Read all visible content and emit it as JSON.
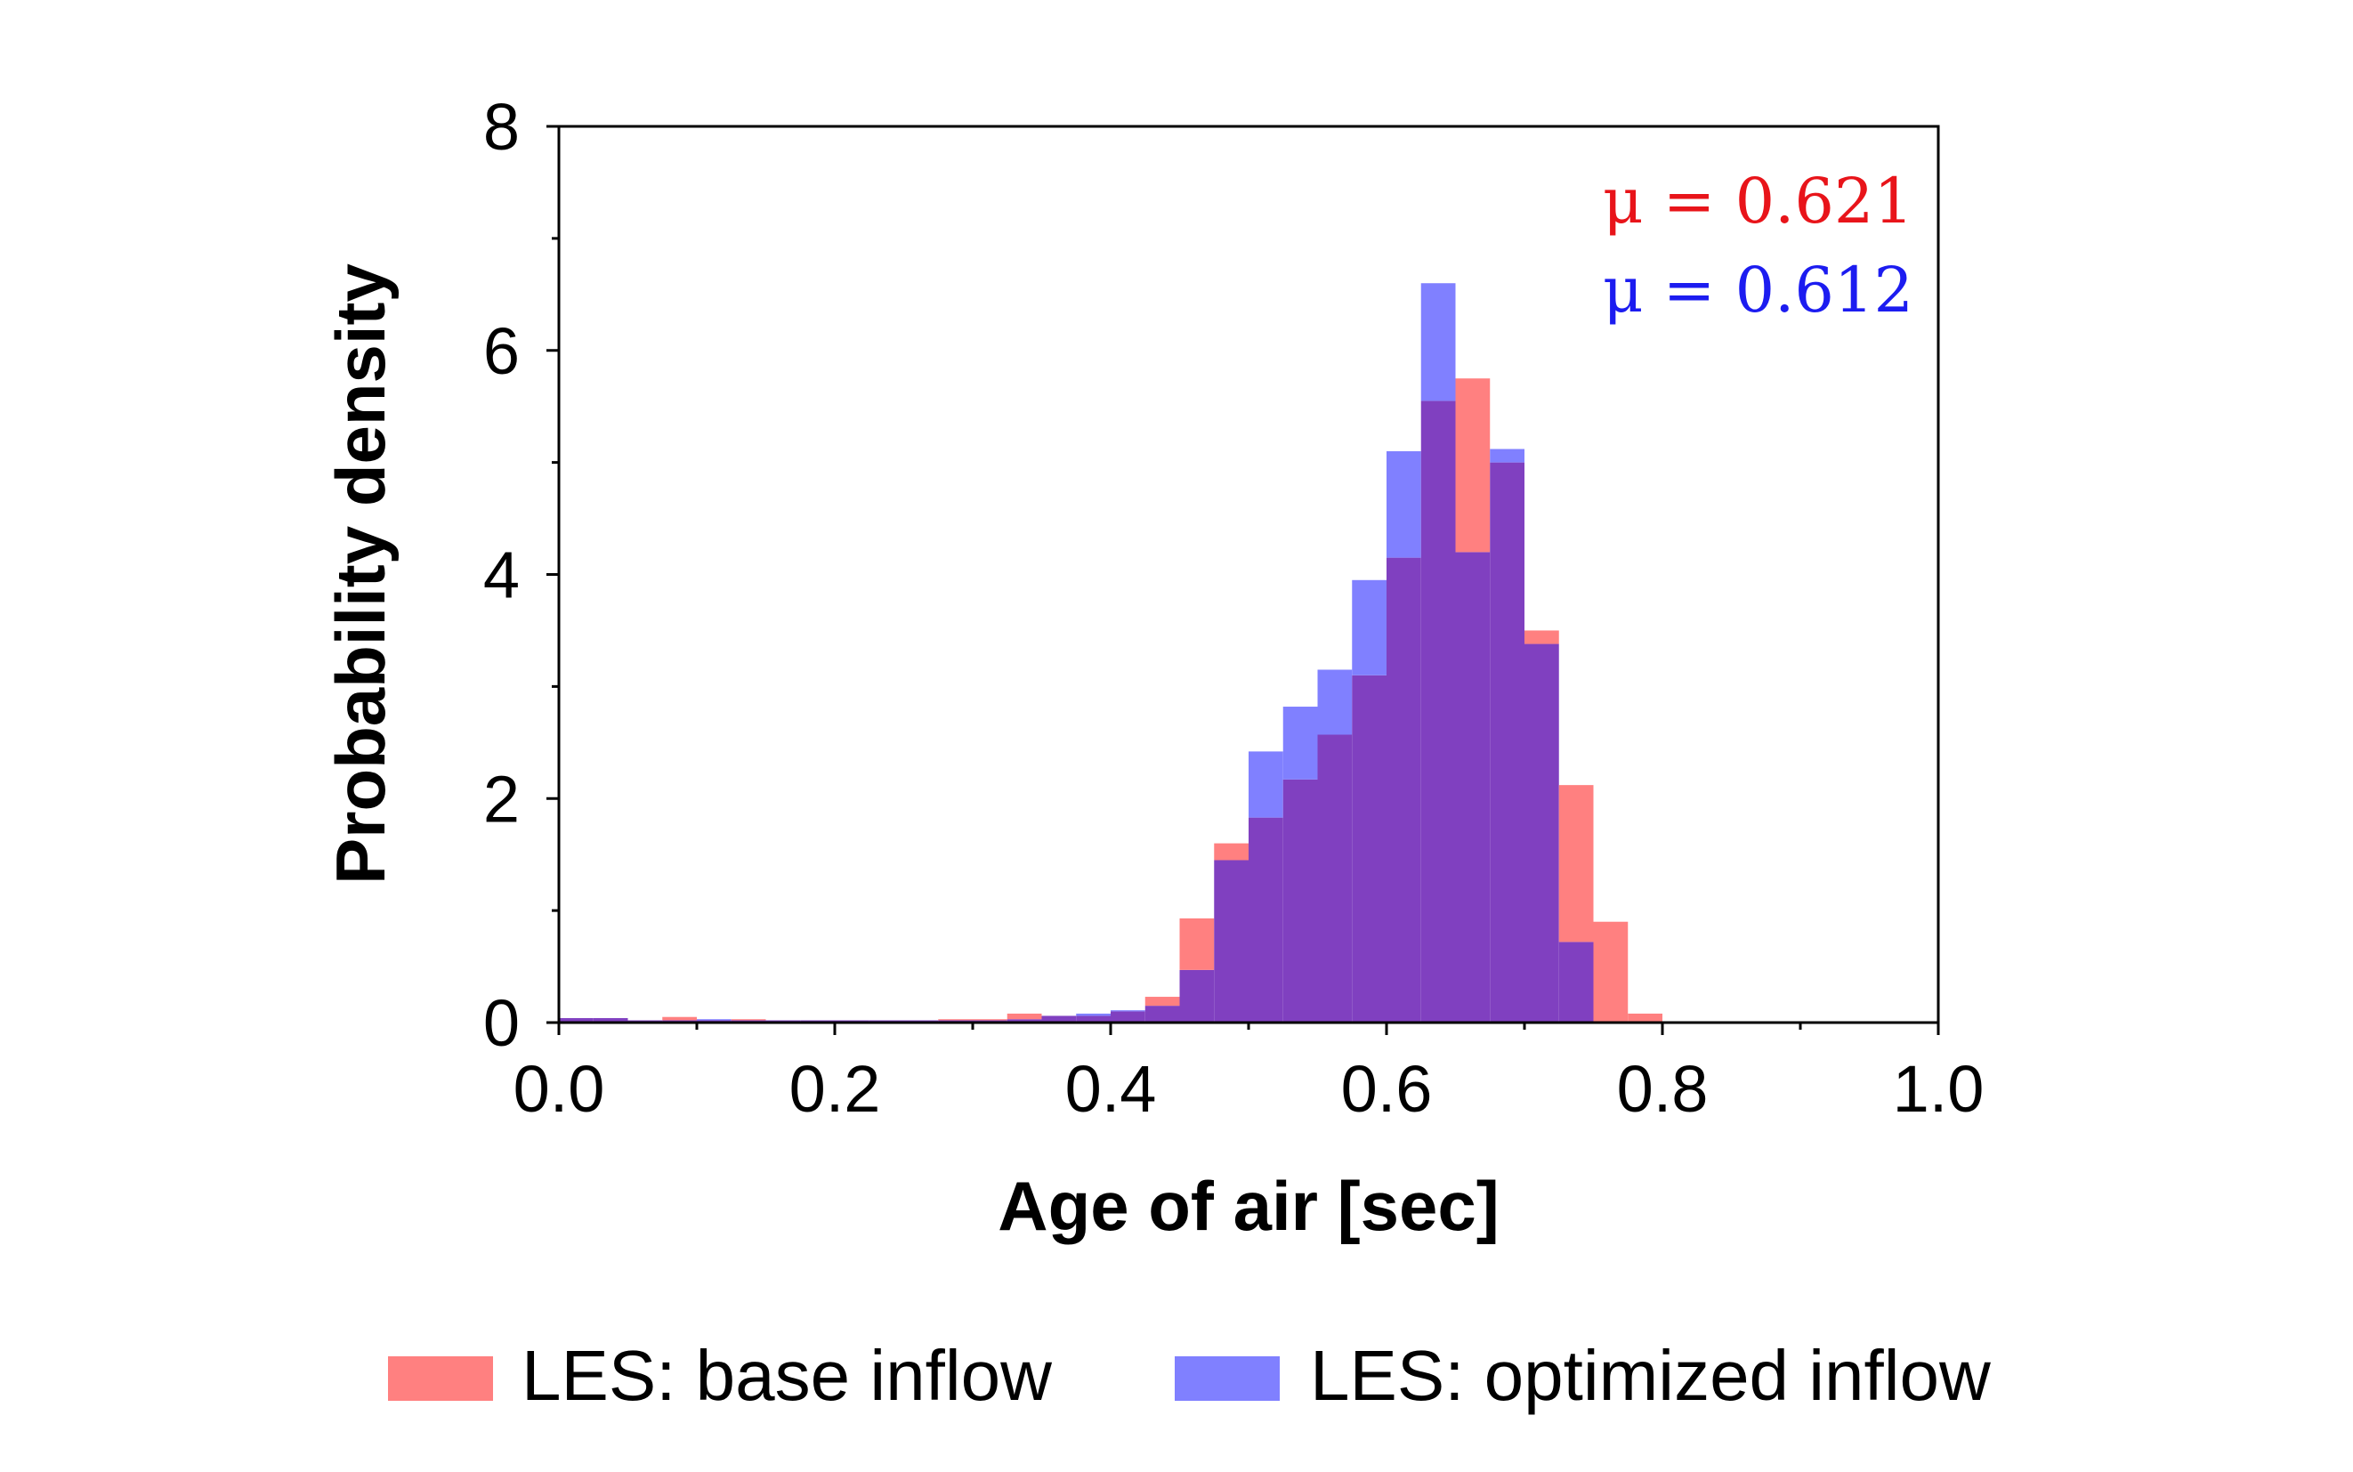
{
  "chart_data": {
    "type": "histogram",
    "xlabel": "Age of air [sec]",
    "ylabel": "Probability density",
    "xlim": [
      0.0,
      1.0
    ],
    "ylim": [
      0,
      8
    ],
    "x_ticks": [
      "0.0",
      "0.2",
      "0.4",
      "0.6",
      "0.8",
      "1.0"
    ],
    "x_tick_values": [
      0.0,
      0.2,
      0.4,
      0.6,
      0.8,
      1.0
    ],
    "y_ticks": [
      "0",
      "2",
      "4",
      "6",
      "8"
    ],
    "y_tick_values": [
      0,
      2,
      4,
      6,
      8
    ],
    "bin_width": 0.025,
    "bin_starts": [
      0.0,
      0.025,
      0.05,
      0.075,
      0.1,
      0.125,
      0.15,
      0.175,
      0.2,
      0.225,
      0.25,
      0.275,
      0.3,
      0.325,
      0.35,
      0.375,
      0.4,
      0.425,
      0.45,
      0.475,
      0.5,
      0.525,
      0.55,
      0.575,
      0.6,
      0.625,
      0.65,
      0.675,
      0.7,
      0.725,
      0.75,
      0.775
    ],
    "series": [
      {
        "name": "LES: base inflow",
        "color": "#ff8080",
        "values": [
          0.04,
          0.04,
          0.02,
          0.05,
          0.02,
          0.03,
          0.02,
          0.02,
          0.02,
          0.02,
          0.02,
          0.03,
          0.03,
          0.08,
          0.06,
          0.06,
          0.1,
          0.23,
          0.93,
          1.6,
          1.83,
          2.17,
          2.57,
          3.1,
          4.15,
          5.55,
          5.75,
          5.0,
          3.5,
          2.12,
          0.9,
          0.08
        ]
      },
      {
        "name": "LES: optimized inflow",
        "color": "#8080ff",
        "values": [
          0.04,
          0.04,
          0.02,
          0.02,
          0.03,
          0.02,
          0.02,
          0.02,
          0.02,
          0.02,
          0.02,
          0.02,
          0.02,
          0.03,
          0.06,
          0.08,
          0.11,
          0.15,
          0.47,
          1.45,
          2.42,
          2.82,
          3.15,
          3.95,
          5.1,
          6.6,
          4.2,
          5.12,
          3.38,
          0.72,
          0.0,
          0.0
        ]
      }
    ],
    "overlap_color": "#8040c0",
    "annotations": [
      {
        "text": "μ = 0.621",
        "color": "#e8141a"
      },
      {
        "text": "μ = 0.612",
        "color": "#1c1cf0"
      }
    ],
    "legend": {
      "placement": "bottom",
      "entries": [
        {
          "label": "LES: base inflow",
          "color": "#ff8080"
        },
        {
          "label": "LES: optimized inflow",
          "color": "#8080ff"
        }
      ]
    },
    "grid": false
  }
}
